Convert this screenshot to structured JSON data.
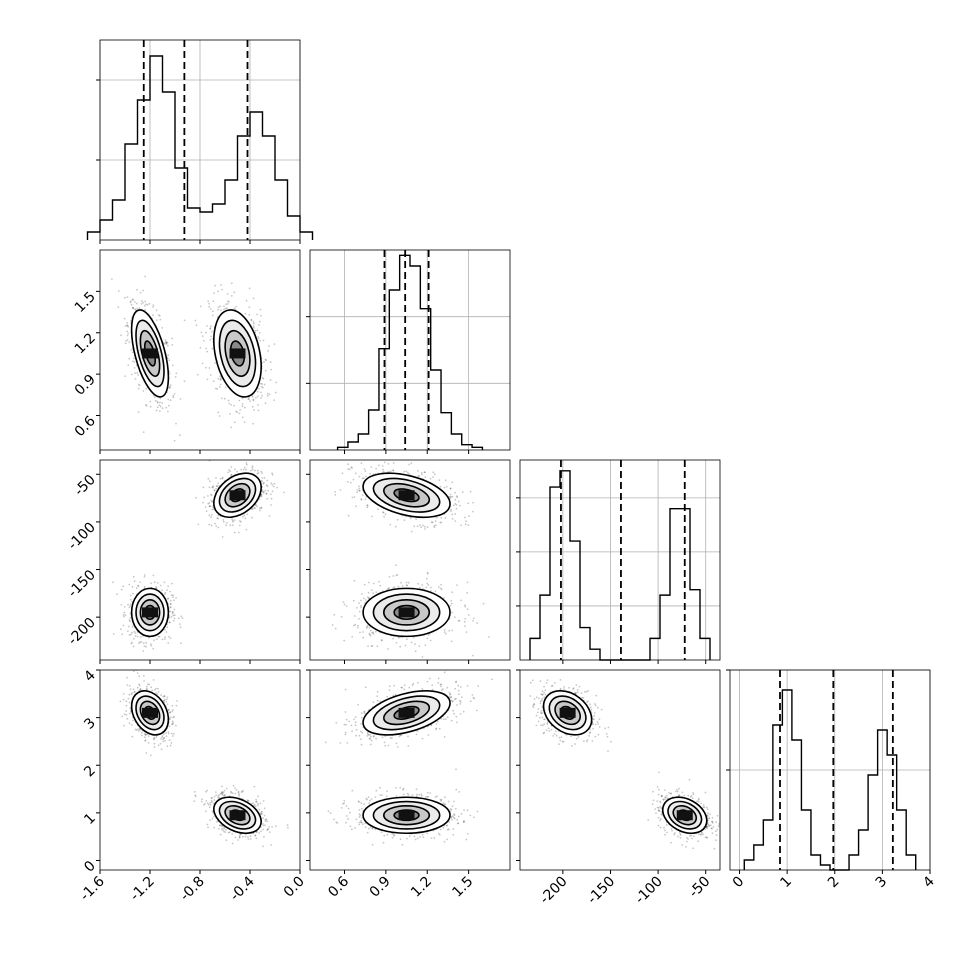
{
  "chart_data": {
    "type": "corner",
    "grid": true,
    "params": [
      {
        "range": [
          -1.6,
          0.0
        ],
        "ticks": [
          "-1.6",
          "-1.2",
          "-0.8",
          "-0.4",
          "0.0"
        ],
        "tick_values": [
          -1.6,
          -1.2,
          -0.8,
          -0.4,
          0.0
        ],
        "quantiles": [
          -1.25,
          -0.925,
          -0.42
        ],
        "hist_bin_width": 0.1,
        "hist_counts": [
          0.2,
          0.5,
          1.0,
          2.4,
          3.5,
          4.6,
          3.7,
          1.8,
          0.8,
          0.7,
          0.9,
          1.5,
          2.6,
          3.2,
          2.6,
          1.5,
          0.6,
          0.2
        ]
      },
      {
        "range": [
          0.35,
          1.8
        ],
        "ticks": [
          "0.6",
          "0.9",
          "1.2",
          "1.5"
        ],
        "tick_values": [
          0.6,
          0.9,
          1.2,
          1.5
        ],
        "quantiles": [
          0.89,
          1.04,
          1.21
        ],
        "hist_bin_width": 0.075,
        "hist_counts": [
          0.1,
          0.3,
          0.6,
          1.5,
          3.8,
          6.0,
          7.3,
          6.9,
          5.3,
          3.0,
          1.4,
          0.6,
          0.2,
          0.1
        ]
      },
      {
        "range": [
          -245,
          -35
        ],
        "ticks": [
          "-200",
          "-150",
          "-100",
          "-50"
        ],
        "tick_values": [
          -200,
          -150,
          -100,
          -50
        ],
        "quantiles": [
          -202,
          -139,
          -72
        ],
        "hist_bin_width": 10.5,
        "hist_counts": [
          0.4,
          1.2,
          3.2,
          3.5,
          2.2,
          0.6,
          0.2,
          0.0,
          0.0,
          0.0,
          0.0,
          0.0,
          0.4,
          1.2,
          2.8,
          2.8,
          1.3,
          0.4
        ]
      },
      {
        "range": [
          -0.2,
          4.0
        ],
        "ticks": [
          "0",
          "1",
          "2",
          "3",
          "4"
        ],
        "tick_values": [
          0,
          1,
          2,
          3,
          4
        ],
        "quantiles": [
          0.85,
          1.97,
          3.22
        ],
        "hist_bin_width": 0.2,
        "hist_counts": [
          0.2,
          0.5,
          1.0,
          2.9,
          3.6,
          2.6,
          1.2,
          0.3,
          0.1,
          0.0,
          0.0,
          0.3,
          0.8,
          1.9,
          2.8,
          2.3,
          1.2,
          0.3
        ]
      }
    ],
    "diag_yticks": [
      [
        2,
        4
      ],
      [
        2.5,
        5
      ],
      [
        1,
        2,
        3
      ],
      [
        2,
        4
      ]
    ],
    "diag_ymax": [
      5.0,
      7.5,
      3.7,
      4.0
    ],
    "modes": [
      {
        "center": [
          -1.2,
          1.05,
          -195,
          3.1
        ],
        "sd": [
          0.07,
          0.15,
          12,
          0.22
        ],
        "weight": 0.5
      },
      {
        "center": [
          -0.5,
          1.05,
          -72,
          0.95
        ],
        "sd": [
          0.09,
          0.15,
          11,
          0.18
        ],
        "weight": 0.5
      }
    ],
    "pair_corr": {
      "0-1": [
        -0.55,
        -0.3
      ],
      "0-2": [
        0.0,
        0.35
      ],
      "0-3": [
        -0.3,
        -0.35
      ],
      "1-2": [
        0.0,
        -0.4
      ],
      "1-3": [
        0.45,
        0.0
      ],
      "2-3": [
        -0.3,
        -0.3
      ]
    }
  }
}
